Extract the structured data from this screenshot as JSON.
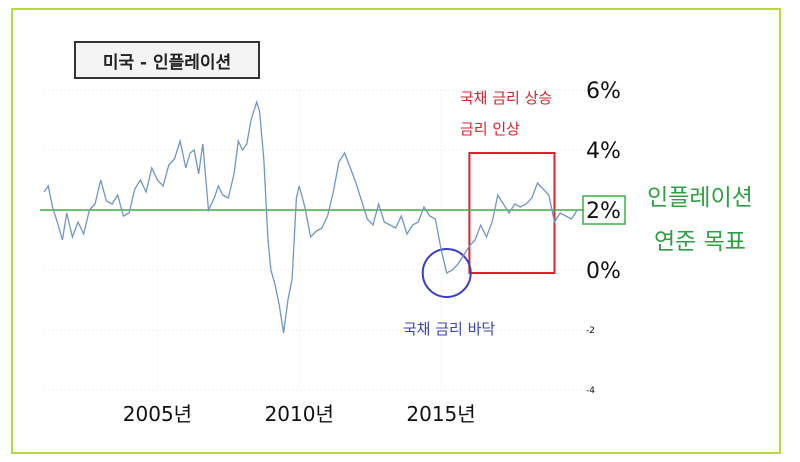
{
  "title": "미국 - 인플레이션",
  "colors": {
    "frame": "#b5dc3c",
    "line": "#6f97c6",
    "target_line": "#3cb043",
    "rise_box": "#e0202a",
    "bottom_circle": "#3a3fc4",
    "rise_text": "#d9232c",
    "bottom_text": "#3b44b8",
    "target_text": "#2ea043"
  },
  "annotations": {
    "rise_line1": "국채 금리 상승",
    "rise_line2": "금리 인상",
    "bottom": "국채 금리 바닥",
    "target_line1": "인플레이션",
    "target_line2": "연준 목표"
  },
  "chart_data": {
    "type": "line",
    "title": "미국 - 인플레이션",
    "xlabel": "",
    "ylabel": "",
    "xlim": [
      2001.0,
      2019.9
    ],
    "ylim": [
      -4,
      6
    ],
    "grid": true,
    "x_ticks": [
      {
        "value": 2005,
        "label": "2005년"
      },
      {
        "value": 2010,
        "label": "2010년"
      },
      {
        "value": 2015,
        "label": "2015년"
      }
    ],
    "y_ticks": [
      {
        "value": 6,
        "label": "6%",
        "size": "large"
      },
      {
        "value": 4,
        "label": "4%",
        "size": "large"
      },
      {
        "value": 2,
        "label": "2%",
        "size": "large",
        "boxed": true
      },
      {
        "value": 0,
        "label": "0%",
        "size": "large"
      },
      {
        "value": -2,
        "label": "-2",
        "size": "small"
      },
      {
        "value": -4,
        "label": "-4",
        "size": "small"
      }
    ],
    "reference_line": {
      "y": 2.0
    },
    "highlight_box": {
      "x0": 2016.0,
      "x1": 2019.0,
      "y0": -0.1,
      "y1": 3.9
    },
    "highlight_circle": {
      "x": 2015.2,
      "y": -0.1
    },
    "series": [
      {
        "x": [
          2001.0,
          2001.15,
          2001.3,
          2001.5,
          2001.65,
          2001.8,
          2002.0,
          2002.2,
          2002.4,
          2002.6,
          2002.8,
          2003.0,
          2003.2,
          2003.4,
          2003.6,
          2003.8,
          2004.0,
          2004.2,
          2004.4,
          2004.6,
          2004.8,
          2005.0,
          2005.2,
          2005.4,
          2005.6,
          2005.8,
          2006.0,
          2006.15,
          2006.3,
          2006.45,
          2006.6,
          2006.8,
          2007.0,
          2007.15,
          2007.3,
          2007.5,
          2007.7,
          2007.85,
          2008.0,
          2008.15,
          2008.3,
          2008.5,
          2008.6,
          2008.75,
          2008.9,
          2009.0,
          2009.15,
          2009.3,
          2009.45,
          2009.6,
          2009.75,
          2009.9,
          2010.0,
          2010.2,
          2010.4,
          2010.6,
          2010.8,
          2011.0,
          2011.2,
          2011.4,
          2011.6,
          2011.8,
          2012.0,
          2012.2,
          2012.4,
          2012.6,
          2012.8,
          2013.0,
          2013.2,
          2013.4,
          2013.6,
          2013.8,
          2014.0,
          2014.2,
          2014.4,
          2014.6,
          2014.8,
          2015.0,
          2015.2,
          2015.4,
          2015.6,
          2015.8,
          2016.0,
          2016.2,
          2016.4,
          2016.6,
          2016.8,
          2017.0,
          2017.2,
          2017.4,
          2017.6,
          2017.8,
          2018.0,
          2018.2,
          2018.4,
          2018.6,
          2018.8,
          2019.0,
          2019.2,
          2019.4,
          2019.6,
          2019.8
        ],
        "y": [
          2.6,
          2.8,
          2.1,
          1.5,
          1.0,
          1.9,
          1.1,
          1.6,
          1.2,
          2.0,
          2.2,
          3.0,
          2.3,
          2.2,
          2.5,
          1.8,
          1.9,
          2.7,
          3.0,
          2.6,
          3.4,
          3.0,
          2.8,
          3.5,
          3.7,
          4.3,
          3.4,
          3.9,
          4.0,
          3.2,
          4.2,
          2.0,
          2.4,
          2.8,
          2.5,
          2.4,
          3.2,
          4.3,
          4.0,
          4.2,
          5.0,
          5.6,
          5.3,
          3.7,
          1.0,
          0.0,
          -0.5,
          -1.2,
          -2.1,
          -1.0,
          -0.3,
          2.4,
          2.8,
          2.1,
          1.1,
          1.3,
          1.4,
          1.8,
          2.6,
          3.6,
          3.9,
          3.4,
          2.9,
          2.3,
          1.7,
          1.5,
          2.2,
          1.6,
          1.5,
          1.4,
          1.8,
          1.2,
          1.5,
          1.6,
          2.1,
          1.8,
          1.7,
          0.7,
          -0.1,
          0.0,
          0.2,
          0.5,
          0.8,
          1.0,
          1.5,
          1.1,
          1.6,
          2.5,
          2.2,
          1.9,
          2.2,
          2.1,
          2.2,
          2.4,
          2.9,
          2.7,
          2.5,
          1.6,
          1.9,
          1.8,
          1.7,
          2.0
        ]
      }
    ]
  }
}
